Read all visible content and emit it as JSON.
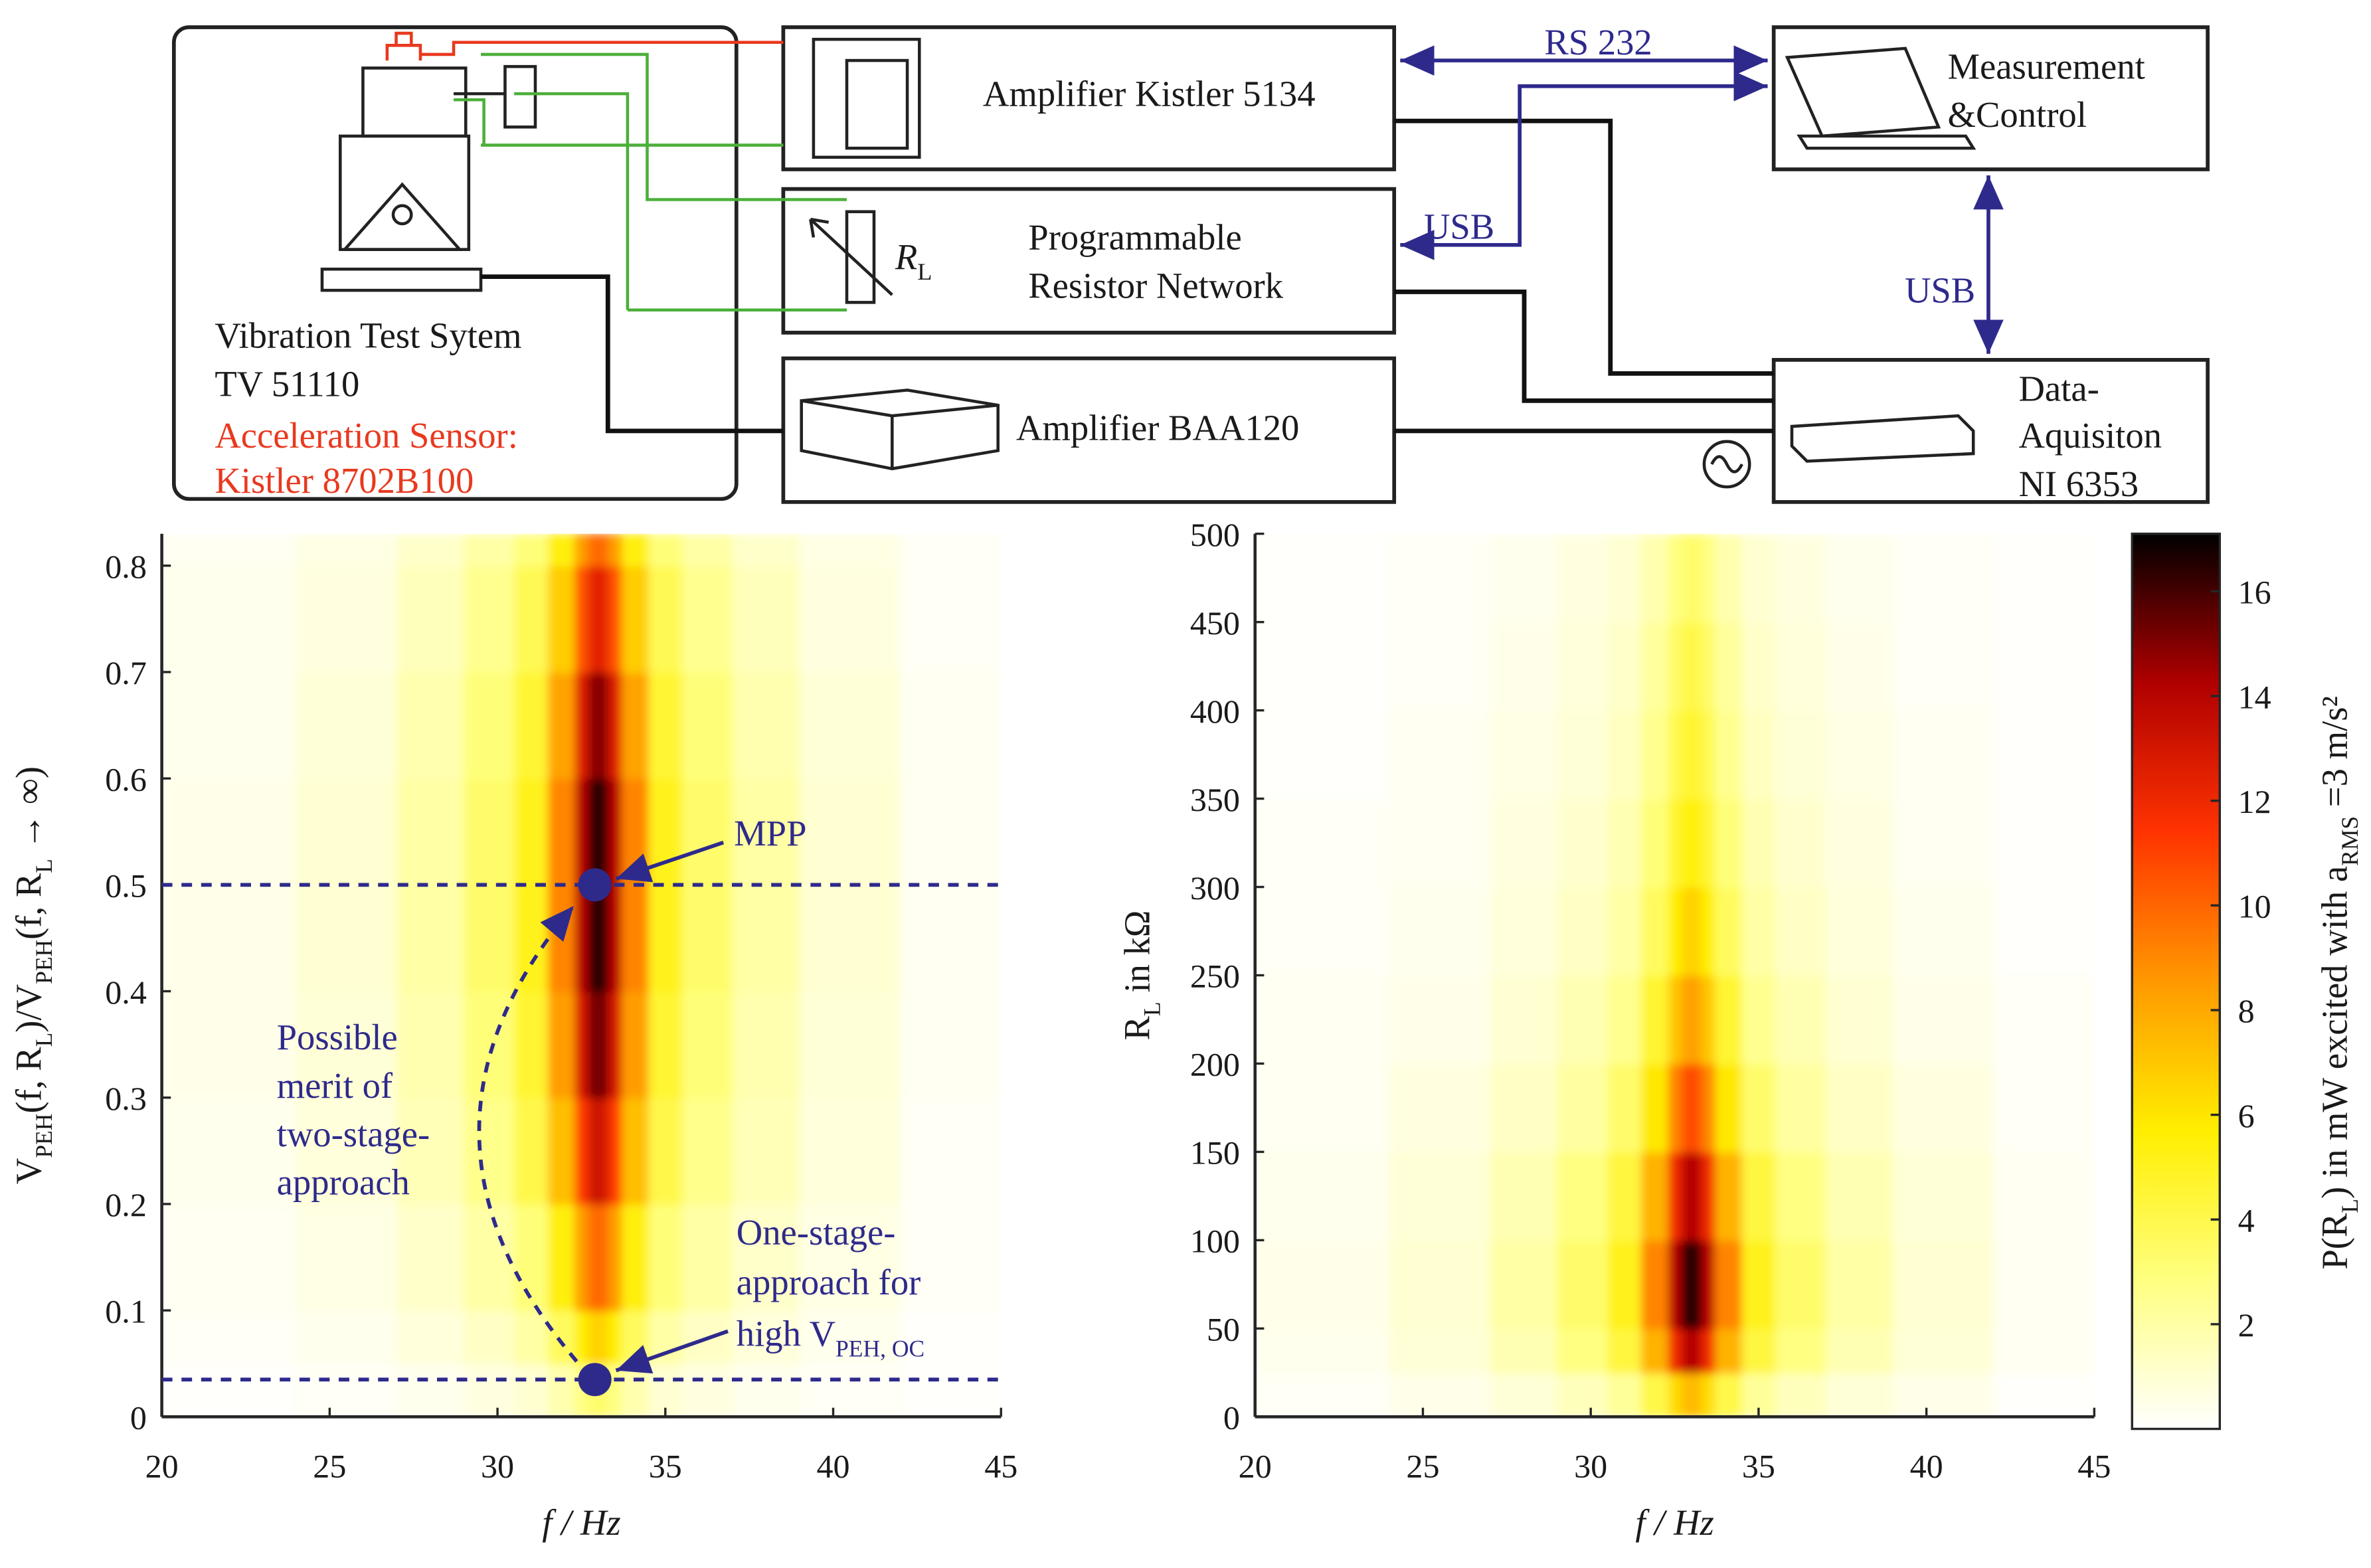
{
  "diagram": {
    "shaker": {
      "lines": [
        "Vibration Test Sytem",
        "TV 51110"
      ],
      "sensor": [
        "Acceleration Sensor:",
        "Kistler 8702B100"
      ]
    },
    "amp_kistler": "Amplifier Kistler 5134",
    "resistor": {
      "lines": [
        "Programmable",
        "Resistor Network"
      ],
      "symbol": [
        "R",
        "L"
      ]
    },
    "amp_baa": "Amplifier BAA120",
    "measurement": [
      "Measurement",
      "&Control"
    ],
    "daq": [
      "Data-",
      "Aquisiton",
      "NI 6353"
    ],
    "links": [
      "RS 232",
      "USB",
      "USB"
    ]
  },
  "chart_data": [
    {
      "type": "heatmap",
      "xlabel": "f / Hz",
      "ylabel_parts": [
        "V",
        "PEH",
        "(f, R",
        "L",
        ")/V",
        "PEH",
        "(f, R",
        "L",
        " → ∞)"
      ],
      "xlim": [
        20,
        45
      ],
      "xticks": [
        20,
        25,
        30,
        35,
        40,
        45
      ],
      "ylim": [
        0,
        0.83
      ],
      "yticks": [
        0,
        0.1,
        0.2,
        0.3,
        0.4,
        0.5,
        0.6,
        0.7,
        0.8
      ],
      "zlim": [
        0,
        17.1
      ],
      "colormap": [
        "#ffffff",
        "#ffff80",
        "#ffee00",
        "#ff9900",
        "#ff3300",
        "#b00000",
        "#000000"
      ],
      "xbins": [
        20,
        24,
        27,
        29,
        30.5,
        31.5,
        32.3,
        32.7,
        33.3,
        33.7,
        34.5,
        35.5,
        37,
        39,
        42,
        45
      ],
      "ybins": [
        0,
        0.05,
        0.1,
        0.2,
        0.3,
        0.4,
        0.5,
        0.6,
        0.7,
        0.8,
        0.83
      ],
      "z": [
        [
          0.1,
          0.2,
          0.4,
          0.7,
          1.0,
          1.8,
          2.8,
          3.3,
          2.8,
          1.8,
          1.0,
          0.7,
          0.4,
          0.2,
          0.1
        ],
        [
          0.2,
          0.4,
          0.8,
          1.3,
          2.0,
          3.6,
          5.6,
          6.6,
          5.6,
          3.6,
          2.0,
          1.3,
          0.8,
          0.4,
          0.1
        ],
        [
          0.3,
          0.6,
          1.2,
          2.0,
          3.0,
          5.5,
          8.4,
          9.9,
          8.4,
          5.5,
          3.0,
          2.0,
          1.2,
          0.6,
          0.2
        ],
        [
          0.4,
          0.8,
          1.6,
          2.6,
          4.0,
          7.3,
          11.2,
          13.2,
          11.2,
          7.3,
          4.0,
          2.6,
          1.6,
          0.8,
          0.2
        ],
        [
          0.5,
          0.9,
          1.8,
          3.0,
          4.6,
          8.4,
          12.9,
          15.2,
          12.9,
          8.4,
          4.6,
          3.0,
          1.8,
          0.9,
          0.3
        ],
        [
          0.5,
          1.0,
          2.0,
          3.3,
          5.0,
          9.1,
          14.0,
          16.5,
          14.0,
          9.1,
          5.0,
          3.3,
          2.0,
          1.0,
          0.3
        ],
        [
          0.5,
          1.0,
          2.0,
          3.3,
          5.0,
          9.1,
          14.0,
          16.5,
          14.0,
          9.1,
          5.0,
          3.3,
          2.0,
          1.0,
          0.3
        ],
        [
          0.4,
          0.9,
          1.8,
          3.0,
          4.5,
          8.2,
          12.6,
          14.9,
          12.6,
          8.2,
          4.5,
          3.0,
          1.8,
          0.9,
          0.3
        ],
        [
          0.4,
          0.7,
          1.5,
          2.5,
          3.8,
          6.8,
          10.5,
          12.4,
          10.5,
          6.8,
          3.8,
          2.5,
          1.5,
          0.7,
          0.2
        ],
        [
          0.3,
          0.6,
          1.2,
          2.0,
          3.0,
          5.5,
          8.4,
          9.9,
          8.4,
          5.5,
          3.0,
          2.0,
          1.2,
          0.6,
          0.2
        ]
      ],
      "hlines": [
        0.5,
        0.035
      ],
      "points": [
        {
          "x": 32.9,
          "y": 0.5
        },
        {
          "x": 32.9,
          "y": 0.035
        }
      ],
      "annotation_color": "#2e2a8c",
      "annotations": {
        "mpp": [
          "MPP"
        ],
        "two_stage": [
          "Possible",
          "merit of",
          "two-stage-",
          "approach"
        ],
        "one_stage": [
          "One-stage-",
          "approach for"
        ],
        "one_stage_last": [
          "high V",
          "PEH, OC"
        ]
      }
    },
    {
      "type": "heatmap",
      "xlabel": "f / Hz",
      "ylabel_parts": [
        "R",
        "L",
        " in kΩ"
      ],
      "xlim": [
        20,
        45
      ],
      "xticks": [
        20,
        25,
        30,
        35,
        40,
        45
      ],
      "ylim": [
        0,
        500
      ],
      "yticks": [
        0,
        50,
        100,
        150,
        200,
        250,
        300,
        350,
        400,
        450,
        500
      ],
      "zlim": [
        0,
        17.1
      ],
      "colormap": [
        "#ffffff",
        "#ffff80",
        "#ffee00",
        "#ff9900",
        "#ff3300",
        "#b00000",
        "#000000"
      ],
      "xbins": [
        20,
        24,
        27,
        29,
        30.5,
        31.5,
        32.3,
        32.7,
        33.3,
        33.7,
        34.5,
        35.5,
        37,
        39,
        42,
        45
      ],
      "ybins": [
        0,
        25,
        50,
        100,
        150,
        200,
        250,
        300,
        350,
        400,
        450,
        500
      ],
      "z": [
        [
          0.2,
          0.5,
          0.9,
          1.5,
          2.3,
          4.1,
          6.3,
          7.4,
          6.3,
          4.1,
          2.3,
          1.5,
          0.9,
          0.5,
          0.1
        ],
        [
          0.4,
          0.9,
          1.7,
          2.8,
          4.3,
          7.7,
          11.9,
          14.0,
          11.9,
          7.7,
          4.3,
          2.8,
          1.7,
          0.9,
          0.3
        ],
        [
          0.5,
          1.0,
          2.0,
          3.3,
          5.0,
          9.1,
          14.0,
          16.5,
          14.0,
          9.1,
          5.0,
          3.3,
          2.0,
          1.0,
          0.3
        ],
        [
          0.4,
          0.9,
          1.7,
          2.8,
          4.3,
          7.7,
          11.9,
          14.0,
          11.9,
          7.7,
          4.3,
          2.8,
          1.7,
          0.9,
          0.3
        ],
        [
          0.3,
          0.7,
          1.3,
          2.1,
          3.3,
          5.9,
          9.1,
          10.7,
          9.1,
          5.9,
          3.3,
          2.1,
          1.3,
          0.7,
          0.2
        ],
        [
          0.3,
          0.5,
          1.0,
          1.7,
          2.5,
          4.6,
          7.0,
          8.3,
          7.0,
          4.6,
          2.5,
          1.7,
          1.0,
          0.5,
          0.2
        ],
        [
          0.2,
          0.4,
          0.8,
          1.3,
          2.0,
          3.6,
          5.6,
          6.6,
          5.6,
          3.6,
          2.0,
          1.3,
          0.8,
          0.4,
          0.1
        ],
        [
          0.2,
          0.3,
          0.7,
          1.1,
          1.7,
          3.0,
          4.6,
          5.4,
          4.6,
          3.0,
          1.7,
          1.1,
          0.7,
          0.3,
          0.1
        ],
        [
          0.1,
          0.3,
          0.6,
          0.9,
          1.4,
          2.5,
          3.9,
          4.6,
          3.9,
          2.5,
          1.4,
          0.9,
          0.6,
          0.3,
          0.1
        ],
        [
          0.1,
          0.2,
          0.5,
          0.8,
          1.2,
          2.2,
          3.4,
          4.0,
          3.4,
          2.2,
          1.2,
          0.8,
          0.5,
          0.2,
          0.1
        ],
        [
          0.1,
          0.2,
          0.4,
          0.7,
          1.0,
          1.8,
          2.8,
          3.3,
          2.8,
          1.8,
          1.0,
          0.7,
          0.4,
          0.2,
          0.1
        ]
      ],
      "colorbar": {
        "ticks": [
          2,
          4,
          6,
          8,
          10,
          12,
          14,
          16
        ],
        "label_parts": [
          "P(R",
          "L",
          ") in mW excited with a",
          "RMS",
          " =3 m/s²"
        ]
      }
    }
  ]
}
